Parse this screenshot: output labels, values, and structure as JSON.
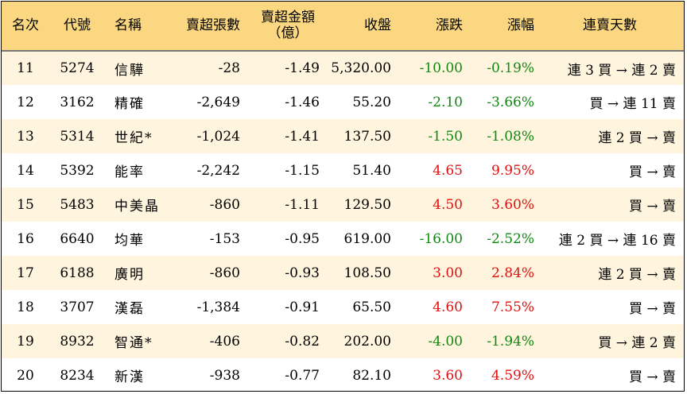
{
  "header": {
    "rank": "名次",
    "code": "代號",
    "name": "名稱",
    "net_sell_lots": "賣超張數",
    "net_sell_amount_line1": "賣超金額",
    "net_sell_amount_line2": "（億）",
    "close": "收盤",
    "change": "漲跌",
    "pct_change": "漲幅",
    "streak": "連賣天數"
  },
  "colors": {
    "header_bg": "#fad780",
    "row_alt_bg": "#fff5de",
    "up": "#e01010",
    "down": "#118811"
  },
  "rows": [
    {
      "rank": "11",
      "code": "5274",
      "name": "信驊",
      "lots": "-28",
      "amount": "-1.49",
      "close": "5,320.00",
      "change": "-10.00",
      "pct": "-0.19%",
      "dir": "down",
      "streak": "連 3 買 → 連 2 賣"
    },
    {
      "rank": "12",
      "code": "3162",
      "name": "精確",
      "lots": "-2,649",
      "amount": "-1.46",
      "close": "55.20",
      "change": "-2.10",
      "pct": "-3.66%",
      "dir": "down",
      "streak": "買 → 連 11 賣"
    },
    {
      "rank": "13",
      "code": "5314",
      "name": "世紀*",
      "lots": "-1,024",
      "amount": "-1.41",
      "close": "137.50",
      "change": "-1.50",
      "pct": "-1.08%",
      "dir": "down",
      "streak": "連 2 買 → 賣"
    },
    {
      "rank": "14",
      "code": "5392",
      "name": "能率",
      "lots": "-2,242",
      "amount": "-1.15",
      "close": "51.40",
      "change": "4.65",
      "pct": "9.95%",
      "dir": "up",
      "streak": "買 → 賣"
    },
    {
      "rank": "15",
      "code": "5483",
      "name": "中美晶",
      "lots": "-860",
      "amount": "-1.11",
      "close": "129.50",
      "change": "4.50",
      "pct": "3.60%",
      "dir": "up",
      "streak": "買 → 賣"
    },
    {
      "rank": "16",
      "code": "6640",
      "name": "均華",
      "lots": "-153",
      "amount": "-0.95",
      "close": "619.00",
      "change": "-16.00",
      "pct": "-2.52%",
      "dir": "down",
      "streak": "連 2 買 → 連 16 賣"
    },
    {
      "rank": "17",
      "code": "6188",
      "name": "廣明",
      "lots": "-860",
      "amount": "-0.93",
      "close": "108.50",
      "change": "3.00",
      "pct": "2.84%",
      "dir": "up",
      "streak": "連 2 買 → 賣"
    },
    {
      "rank": "18",
      "code": "3707",
      "name": "漢磊",
      "lots": "-1,384",
      "amount": "-0.91",
      "close": "65.50",
      "change": "4.60",
      "pct": "7.55%",
      "dir": "up",
      "streak": "買 → 賣"
    },
    {
      "rank": "19",
      "code": "8932",
      "name": "智通*",
      "lots": "-406",
      "amount": "-0.82",
      "close": "202.00",
      "change": "-4.00",
      "pct": "-1.94%",
      "dir": "down",
      "streak": "買 → 連 2 賣"
    },
    {
      "rank": "20",
      "code": "8234",
      "name": "新漢",
      "lots": "-938",
      "amount": "-0.77",
      "close": "82.10",
      "change": "3.60",
      "pct": "4.59%",
      "dir": "up",
      "streak": "買 → 賣"
    }
  ]
}
